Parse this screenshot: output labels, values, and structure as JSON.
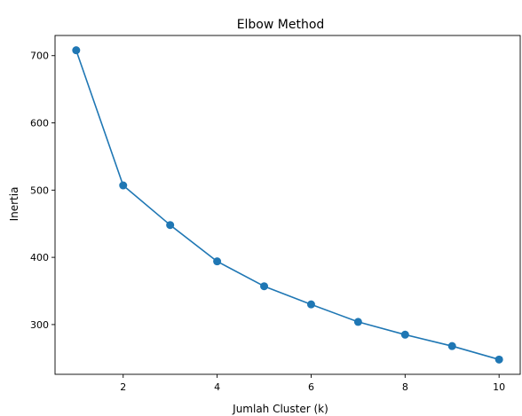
{
  "chart_data": {
    "type": "line",
    "title": "Elbow Method",
    "xlabel": "Jumlah Cluster (k)",
    "ylabel": "Inertia",
    "x": [
      1,
      2,
      3,
      4,
      5,
      6,
      7,
      8,
      9,
      10
    ],
    "series": [
      {
        "values": [
          708,
          507,
          448,
          394,
          357,
          330,
          304,
          285,
          268,
          248
        ],
        "color": "#1f77b4",
        "marker": "circle"
      }
    ],
    "xlim": [
      0.55,
      10.45
    ],
    "ylim": [
      226,
      730
    ],
    "xticks": [
      "2",
      "4",
      "6",
      "8",
      "10"
    ],
    "yticks": [
      "300",
      "400",
      "500",
      "600",
      "700"
    ],
    "grid": false,
    "legend": "none"
  }
}
